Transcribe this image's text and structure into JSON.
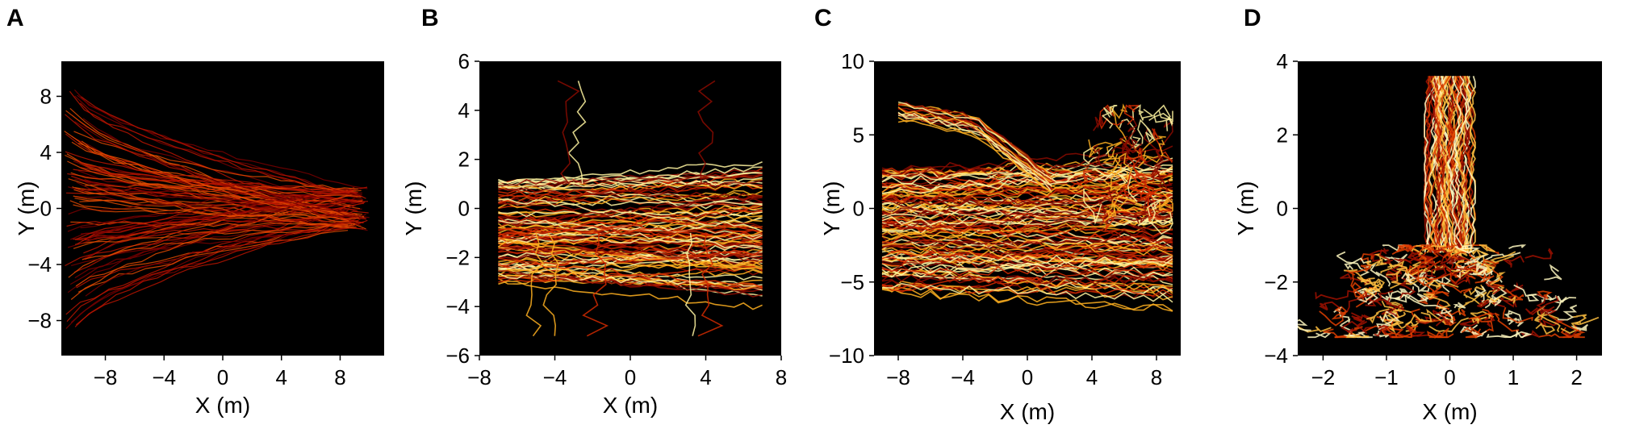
{
  "chart_data": [
    {
      "panel": "A",
      "type": "line",
      "xlabel": "X (m)",
      "ylabel": "Y (m)",
      "xlim": [
        -11,
        11
      ],
      "ylim": [
        -10.5,
        10.5
      ],
      "xticks": [
        -8,
        -4,
        0,
        4,
        8
      ],
      "xtick_labels": [
        "−8",
        "−4",
        "0",
        "4",
        "8"
      ],
      "yticks": [
        -8,
        -4,
        0,
        4,
        8
      ],
      "ytick_labels": [
        "−8",
        "−4",
        "0",
        "4",
        "8"
      ],
      "background": "#000000",
      "colors": [
        "#7a0000",
        "#b81400",
        "#e34a00"
      ],
      "description_series": [
        {
          "start_x": -10.5,
          "start_y": [
            -8,
            8
          ],
          "end_x": 9.5,
          "end_y": [
            -1.5,
            1.5
          ]
        }
      ]
    },
    {
      "panel": "B",
      "type": "line",
      "xlabel": "X (m)",
      "ylabel": "Y (m)",
      "xlim": [
        -8,
        8
      ],
      "ylim": [
        -6,
        6
      ],
      "xticks": [
        -8,
        -4,
        0,
        4,
        8
      ],
      "xtick_labels": [
        "−8",
        "−4",
        "0",
        "4",
        "8"
      ],
      "yticks": [
        -6,
        -4,
        -2,
        0,
        2,
        4,
        6
      ],
      "ytick_labels": [
        "−6",
        "−4",
        "−2",
        "0",
        "2",
        "4",
        "6"
      ],
      "background": "#000000",
      "colors": [
        "#8a0a00",
        "#d22a00",
        "#ffb020",
        "#fff4a0"
      ]
    },
    {
      "panel": "C",
      "type": "line",
      "xlabel": "X (m)",
      "ylabel": "Y (m)",
      "xlim": [
        -9.5,
        9.5
      ],
      "ylim": [
        -10,
        10
      ],
      "xticks": [
        -8,
        -4,
        0,
        4,
        8
      ],
      "xtick_labels": [
        "−8",
        "−4",
        "0",
        "4",
        "8"
      ],
      "yticks": [
        -10,
        -5,
        0,
        5,
        10
      ],
      "ytick_labels": [
        "−10",
        "−5",
        "0",
        "5",
        "10"
      ],
      "background": "#000000",
      "colors": [
        "#8a0a00",
        "#d22a00",
        "#ffb020",
        "#fff4a0"
      ]
    },
    {
      "panel": "D",
      "type": "line",
      "xlabel": "X (m)",
      "ylabel": "Y (m)",
      "xlim": [
        -2.4,
        2.4
      ],
      "ylim": [
        -4,
        4
      ],
      "xticks": [
        -2,
        -1,
        0,
        1,
        2
      ],
      "xtick_labels": [
        "−2",
        "−1",
        "0",
        "1",
        "2"
      ],
      "yticks": [
        -4,
        -2,
        0,
        2,
        4
      ],
      "ytick_labels": [
        "−4",
        "−2",
        "0",
        "2",
        "4"
      ],
      "background": "#000000",
      "colors": [
        "#a01000",
        "#e04000",
        "#ffc040",
        "#fff8c0"
      ]
    }
  ]
}
